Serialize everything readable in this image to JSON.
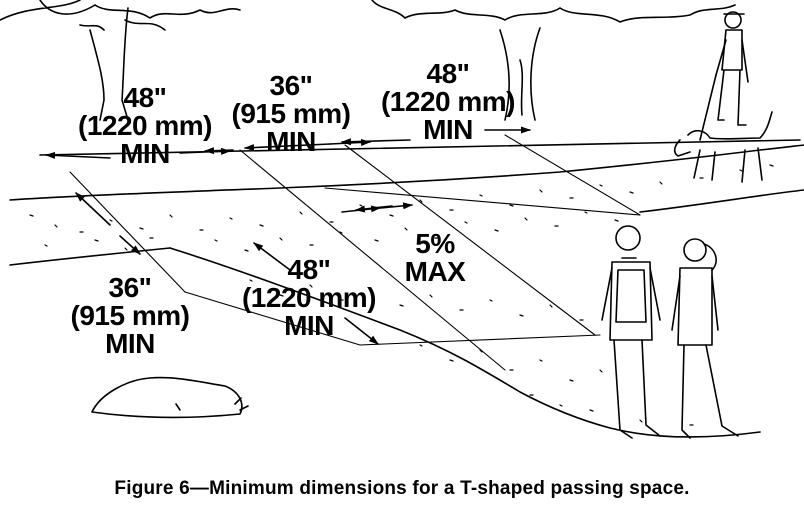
{
  "figure": {
    "caption": "Figure 6—Minimum dimensions for a T-shaped passing space."
  },
  "dimensions": [
    {
      "id": "top-left",
      "value": "48\"",
      "metric": "(1220 mm)",
      "qualifier": "MIN"
    },
    {
      "id": "top-middle",
      "value": "36\"",
      "metric": "(915 mm)",
      "qualifier": "MIN"
    },
    {
      "id": "top-right",
      "value": "48\"",
      "metric": "(1220 mm)",
      "qualifier": "MIN"
    },
    {
      "id": "bottom-left",
      "value": "36\"",
      "metric": "(915 mm)",
      "qualifier": "MIN"
    },
    {
      "id": "bottom-middle",
      "value": "48\"",
      "metric": "(1220 mm)",
      "qualifier": "MIN"
    }
  ],
  "slope": {
    "value": "5%",
    "qualifier": "MAX"
  },
  "colors": {
    "ink": "#000000",
    "paper": "#ffffff"
  }
}
